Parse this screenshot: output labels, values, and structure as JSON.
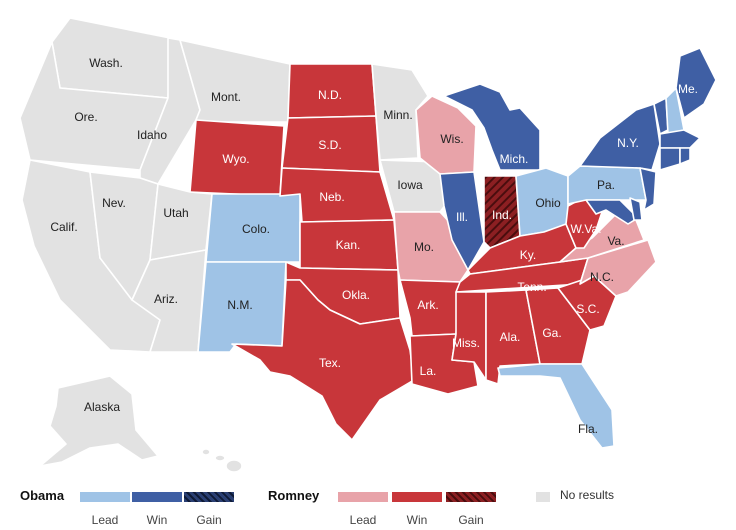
{
  "colors": {
    "obama_lead": "#9fc3e6",
    "obama_win": "#3f5fa4",
    "obama_gain": "#2a3f73",
    "romney_lead": "#e8a3a9",
    "romney_win": "#c8363a",
    "romney_gain": "#8c1f22",
    "no_results": "#e2e2e2",
    "border": "#ffffff"
  },
  "states": [
    {
      "id": "wa",
      "label": "Wash.",
      "status": "no_results"
    },
    {
      "id": "or",
      "label": "Ore.",
      "status": "no_results"
    },
    {
      "id": "ca",
      "label": "Calif.",
      "status": "no_results"
    },
    {
      "id": "id",
      "label": "Idaho",
      "status": "no_results"
    },
    {
      "id": "nv",
      "label": "Nev.",
      "status": "no_results"
    },
    {
      "id": "mt",
      "label": "Mont.",
      "status": "no_results"
    },
    {
      "id": "wy",
      "label": "Wyo.",
      "status": "romney_win"
    },
    {
      "id": "ut",
      "label": "Utah",
      "status": "no_results"
    },
    {
      "id": "az",
      "label": "Ariz.",
      "status": "no_results"
    },
    {
      "id": "co",
      "label": "Colo.",
      "status": "obama_lead"
    },
    {
      "id": "nm",
      "label": "N.M.",
      "status": "obama_lead"
    },
    {
      "id": "nd",
      "label": "N.D.",
      "status": "romney_win"
    },
    {
      "id": "sd",
      "label": "S.D.",
      "status": "romney_win"
    },
    {
      "id": "ne",
      "label": "Neb.",
      "status": "romney_win"
    },
    {
      "id": "ks",
      "label": "Kan.",
      "status": "romney_win"
    },
    {
      "id": "ok",
      "label": "Okla.",
      "status": "romney_win"
    },
    {
      "id": "tx",
      "label": "Tex.",
      "status": "romney_win"
    },
    {
      "id": "mn",
      "label": "Minn.",
      "status": "no_results"
    },
    {
      "id": "ia",
      "label": "Iowa",
      "status": "no_results"
    },
    {
      "id": "mo",
      "label": "Mo.",
      "status": "romney_lead"
    },
    {
      "id": "ar",
      "label": "Ark.",
      "status": "romney_win"
    },
    {
      "id": "la",
      "label": "La.",
      "status": "romney_win"
    },
    {
      "id": "wi",
      "label": "Wis.",
      "status": "romney_lead"
    },
    {
      "id": "il",
      "label": "Ill.",
      "status": "obama_win"
    },
    {
      "id": "mi",
      "label": "Mich.",
      "status": "obama_win"
    },
    {
      "id": "in",
      "label": "Ind.",
      "status": "romney_gain"
    },
    {
      "id": "oh",
      "label": "Ohio",
      "status": "obama_lead"
    },
    {
      "id": "ky",
      "label": "Ky.",
      "status": "romney_win"
    },
    {
      "id": "tn",
      "label": "Tenn.",
      "status": "romney_win"
    },
    {
      "id": "ms",
      "label": "Miss.",
      "status": "romney_win"
    },
    {
      "id": "al",
      "label": "Ala.",
      "status": "romney_win"
    },
    {
      "id": "ga",
      "label": "Ga.",
      "status": "romney_win"
    },
    {
      "id": "fl",
      "label": "Fla.",
      "status": "obama_lead"
    },
    {
      "id": "sc",
      "label": "S.C.",
      "status": "romney_win"
    },
    {
      "id": "nc",
      "label": "N.C.",
      "status": "romney_lead"
    },
    {
      "id": "va",
      "label": "Va.",
      "status": "romney_lead"
    },
    {
      "id": "wv",
      "label": "W.Va.",
      "status": "romney_win"
    },
    {
      "id": "pa",
      "label": "Pa.",
      "status": "obama_lead"
    },
    {
      "id": "ny",
      "label": "N.Y.",
      "status": "obama_win"
    },
    {
      "id": "me",
      "label": "Me.",
      "status": "obama_win"
    },
    {
      "id": "nh",
      "label": "",
      "status": "obama_lead"
    },
    {
      "id": "vt",
      "label": "",
      "status": "obama_win"
    },
    {
      "id": "ma",
      "label": "",
      "status": "obama_win"
    },
    {
      "id": "ct",
      "label": "",
      "status": "obama_win"
    },
    {
      "id": "ri",
      "label": "",
      "status": "obama_win"
    },
    {
      "id": "nj",
      "label": "",
      "status": "obama_win"
    },
    {
      "id": "de",
      "label": "",
      "status": "obama_win"
    },
    {
      "id": "md",
      "label": "",
      "status": "obama_win"
    },
    {
      "id": "ak",
      "label": "Alaska",
      "status": "no_results"
    },
    {
      "id": "hi",
      "label": "",
      "status": "no_results"
    }
  ],
  "legend": {
    "obama": {
      "name": "Obama",
      "lead": "Lead",
      "win": "Win",
      "gain": "Gain"
    },
    "romney": {
      "name": "Romney",
      "lead": "Lead",
      "win": "Win",
      "gain": "Gain"
    },
    "no_results": "No results"
  }
}
